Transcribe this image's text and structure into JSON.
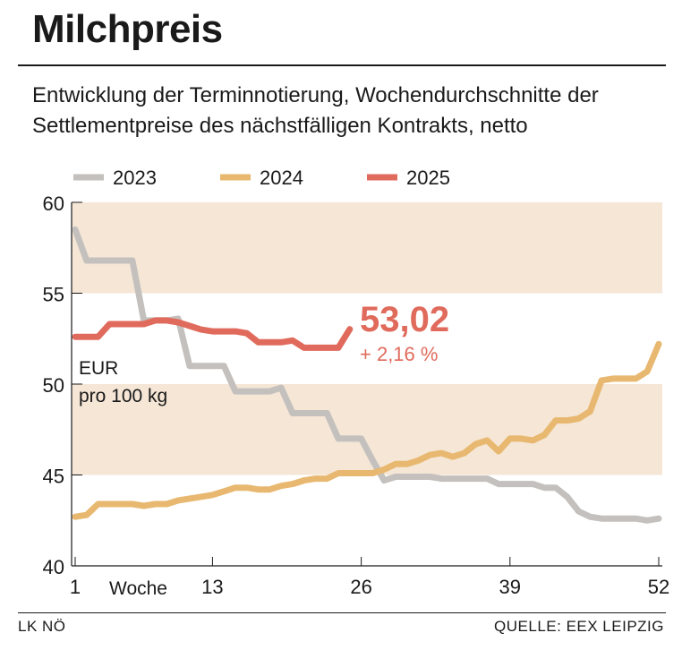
{
  "header": {
    "title": "Milchpreis",
    "subtitle": "Entwicklung der Terminnotierung, Wochendurchschnitte der Settlementpreise des nächstfälligen Kontrakts, netto"
  },
  "footer": {
    "credit": "LK NÖ",
    "source": "QUELLE: EEX LEIPZIG"
  },
  "chart_data": {
    "type": "line",
    "xlabel": "Woche",
    "ylabel": "EUR pro 100 kg",
    "ylabel_lines": [
      "EUR",
      "pro 100 kg"
    ],
    "xlim": [
      1,
      52
    ],
    "ylim": [
      40,
      60
    ],
    "x_ticks": [
      1,
      13,
      26,
      39,
      52
    ],
    "y_ticks": [
      40,
      45,
      50,
      55,
      60
    ],
    "bands": [
      [
        45,
        50
      ],
      [
        55,
        60
      ]
    ],
    "legend_position": "top-left",
    "series": [
      {
        "name": "2023",
        "color": "#c3c0bd",
        "x": [
          1,
          2,
          3,
          4,
          5,
          6,
          7,
          8,
          9,
          10,
          11,
          12,
          13,
          14,
          15,
          16,
          17,
          18,
          19,
          20,
          21,
          22,
          23,
          24,
          25,
          26,
          27,
          28,
          29,
          30,
          31,
          32,
          33,
          34,
          35,
          36,
          37,
          38,
          39,
          40,
          41,
          42,
          43,
          44,
          45,
          46,
          47,
          48,
          49,
          50,
          51,
          52
        ],
        "values": [
          58.5,
          56.8,
          56.8,
          56.8,
          56.8,
          56.8,
          53.5,
          53.5,
          53.5,
          53.6,
          51.0,
          51.0,
          51.0,
          51.0,
          49.6,
          49.6,
          49.6,
          49.6,
          49.8,
          48.4,
          48.4,
          48.4,
          48.4,
          47.0,
          47.0,
          47.0,
          45.8,
          44.7,
          44.9,
          44.9,
          44.9,
          44.9,
          44.8,
          44.8,
          44.8,
          44.8,
          44.8,
          44.5,
          44.5,
          44.5,
          44.5,
          44.3,
          44.3,
          43.8,
          43.0,
          42.7,
          42.6,
          42.6,
          42.6,
          42.6,
          42.5,
          42.6
        ]
      },
      {
        "name": "2024",
        "color": "#e8b870",
        "x": [
          1,
          2,
          3,
          4,
          5,
          6,
          7,
          8,
          9,
          10,
          11,
          12,
          13,
          14,
          15,
          16,
          17,
          18,
          19,
          20,
          21,
          22,
          23,
          24,
          25,
          26,
          27,
          28,
          29,
          30,
          31,
          32,
          33,
          34,
          35,
          36,
          37,
          38,
          39,
          40,
          41,
          42,
          43,
          44,
          45,
          46,
          47,
          48,
          49,
          50,
          51,
          52
        ],
        "values": [
          42.7,
          42.8,
          43.4,
          43.4,
          43.4,
          43.4,
          43.3,
          43.4,
          43.4,
          43.6,
          43.7,
          43.8,
          43.9,
          44.1,
          44.3,
          44.3,
          44.2,
          44.2,
          44.4,
          44.5,
          44.7,
          44.8,
          44.8,
          45.1,
          45.1,
          45.1,
          45.1,
          45.3,
          45.6,
          45.6,
          45.8,
          46.1,
          46.2,
          46.0,
          46.2,
          46.7,
          46.9,
          46.3,
          47.0,
          47.0,
          46.9,
          47.2,
          48.0,
          48.0,
          48.1,
          48.5,
          50.2,
          50.3,
          50.3,
          50.3,
          50.7,
          52.2
        ]
      },
      {
        "name": "2025",
        "color": "#e06b5c",
        "x": [
          1,
          2,
          3,
          4,
          5,
          6,
          7,
          8,
          9,
          10,
          11,
          12,
          13,
          14,
          15,
          16,
          17,
          18,
          19,
          20,
          21,
          22,
          23,
          24,
          25
        ],
        "values": [
          52.6,
          52.6,
          52.6,
          53.3,
          53.3,
          53.3,
          53.3,
          53.5,
          53.5,
          53.4,
          53.2,
          53.0,
          52.9,
          52.9,
          52.9,
          52.8,
          52.3,
          52.3,
          52.3,
          52.4,
          52.0,
          52.0,
          52.0,
          52.0,
          53.02
        ]
      }
    ],
    "annotations": [
      {
        "series": "2025",
        "value_label": "53,02",
        "change_label": "+ 2,16 %"
      }
    ]
  }
}
